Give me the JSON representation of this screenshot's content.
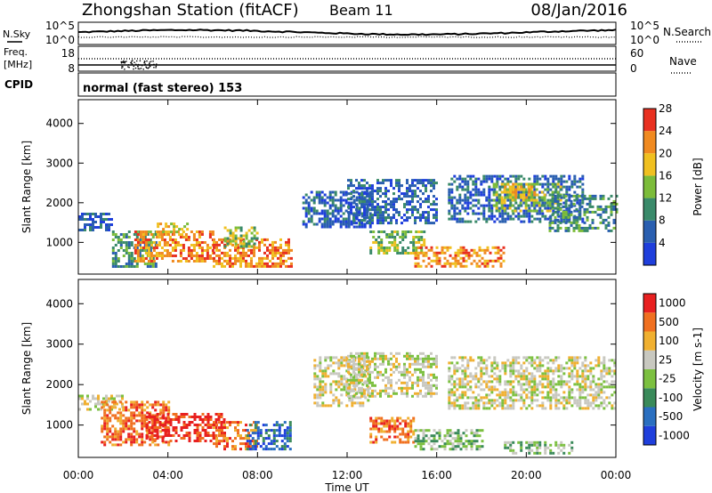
{
  "header": {
    "title": "Zhongshan Station (fitACF)",
    "beam": "Beam 11",
    "date": "08/Jan/2016"
  },
  "strip_panels": {
    "nsky_label": "N.Sky",
    "nsearch_label": "N.Search",
    "noise_ticks": [
      "10^5",
      "10^0"
    ],
    "freq_label_1": "Freq.",
    "freq_label_2": "[MHz]",
    "freq_ticks": [
      "18",
      "8"
    ],
    "nave_label": "Nave",
    "nave_ticks": [
      "60",
      "0"
    ],
    "cpid_label": "CPID",
    "cpid_text": "normal (fast stereo) 153"
  },
  "chart_data": [
    {
      "type": "heatmap",
      "title": "",
      "ylabel": "Slant Range [km]",
      "ylim": [
        200,
        4600
      ],
      "yticks": [
        1000,
        2000,
        3000,
        4000
      ],
      "x": [
        "00:00",
        "04:00",
        "08:00",
        "12:00",
        "16:00",
        "20:00",
        "00:00"
      ],
      "colorbar": {
        "label": "Power [dB]",
        "ticks": [
          "4",
          "8",
          "12",
          "16",
          "20",
          "24",
          "28"
        ],
        "colors": [
          "#1f3fdc",
          "#2a5fb0",
          "#3a8a6a",
          "#7cbc3a",
          "#f0c020",
          "#f08a20",
          "#e83020"
        ]
      },
      "regions": [
        {
          "t0": 0.0,
          "t1": 1.5,
          "r0": 1300,
          "r1": 1750,
          "level": 1
        },
        {
          "t0": 1.5,
          "t1": 3.5,
          "r0": 400,
          "r1": 1300,
          "level": 2
        },
        {
          "t0": 2.5,
          "t1": 6.0,
          "r0": 500,
          "r1": 1300,
          "level": 5
        },
        {
          "t0": 3.5,
          "t1": 5.0,
          "r0": 1200,
          "r1": 1500,
          "level": 4
        },
        {
          "t0": 6.0,
          "t1": 9.5,
          "r0": 400,
          "r1": 1100,
          "level": 5
        },
        {
          "t0": 6.5,
          "t1": 8.0,
          "r0": 900,
          "r1": 1400,
          "level": 3
        },
        {
          "t0": 10.0,
          "t1": 13.0,
          "r0": 1400,
          "r1": 2300,
          "level": 1
        },
        {
          "t0": 12.0,
          "t1": 16.0,
          "r0": 1500,
          "r1": 2600,
          "level": 1
        },
        {
          "t0": 13.0,
          "t1": 15.5,
          "r0": 700,
          "r1": 1300,
          "level": 3
        },
        {
          "t0": 15.0,
          "t1": 19.0,
          "r0": 400,
          "r1": 900,
          "level": 5
        },
        {
          "t0": 16.5,
          "t1": 22.5,
          "r0": 1500,
          "r1": 2700,
          "level": 1
        },
        {
          "t0": 18.5,
          "t1": 21.5,
          "r0": 1800,
          "r1": 2500,
          "level": 3
        },
        {
          "t0": 19.0,
          "t1": 20.5,
          "r0": 2100,
          "r1": 2500,
          "level": 4
        },
        {
          "t0": 21.0,
          "t1": 24.0,
          "r0": 1300,
          "r1": 2200,
          "level": 2
        }
      ]
    },
    {
      "type": "heatmap",
      "title": "",
      "ylabel": "Slant Range [km]",
      "ylim": [
        200,
        4600
      ],
      "yticks": [
        1000,
        2000,
        3000,
        4000
      ],
      "x": [
        "00:00",
        "04:00",
        "08:00",
        "12:00",
        "16:00",
        "20:00",
        "00:00"
      ],
      "xlabel": "Time UT",
      "colorbar": {
        "label": "Velocity",
        "unit": "[m s-1]",
        "ticks": [
          "1000",
          "500",
          "100",
          "25",
          "-25",
          "-100",
          "-500",
          "-1000"
        ],
        "colors": [
          "#1f3fdc",
          "#2a6fc0",
          "#3a8a5a",
          "#7cc040",
          "#c8c8c0",
          "#f0b030",
          "#f07020",
          "#e82020"
        ]
      },
      "regions": [
        {
          "t0": 0.0,
          "t1": 2.0,
          "r0": 1400,
          "r1": 1750,
          "level": 4
        },
        {
          "t0": 1.0,
          "t1": 4.0,
          "r0": 500,
          "r1": 1600,
          "level": 6
        },
        {
          "t0": 3.0,
          "t1": 6.5,
          "r0": 600,
          "r1": 1300,
          "level": 7
        },
        {
          "t0": 6.0,
          "t1": 8.0,
          "r0": 400,
          "r1": 1100,
          "level": 6
        },
        {
          "t0": 7.5,
          "t1": 9.5,
          "r0": 400,
          "r1": 1100,
          "level": 1
        },
        {
          "t0": 10.5,
          "t1": 13.0,
          "r0": 1500,
          "r1": 2700,
          "level": 4
        },
        {
          "t0": 12.0,
          "t1": 16.0,
          "r0": 1700,
          "r1": 2800,
          "level": 4
        },
        {
          "t0": 13.0,
          "t1": 15.0,
          "r0": 600,
          "r1": 1200,
          "level": 6
        },
        {
          "t0": 15.0,
          "t1": 18.0,
          "r0": 400,
          "r1": 900,
          "level": 3
        },
        {
          "t0": 16.5,
          "t1": 24.0,
          "r0": 1400,
          "r1": 2700,
          "level": 4
        },
        {
          "t0": 19.0,
          "t1": 22.0,
          "r0": 300,
          "r1": 600,
          "level": 3
        }
      ]
    }
  ]
}
